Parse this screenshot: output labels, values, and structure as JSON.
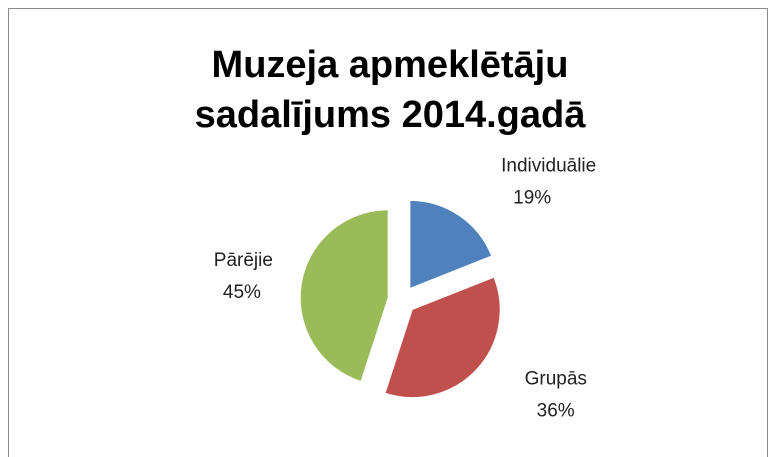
{
  "chart_data": {
    "type": "pie",
    "title": "Muzeja apmeklētāju sadalījums 2014.gadā",
    "categories": [
      "Individuālie",
      "Grupās",
      "Pārējie"
    ],
    "values": [
      19,
      36,
      45
    ],
    "value_labels": [
      "19%",
      "36%",
      "45%"
    ],
    "colors": [
      "#4f81bd",
      "#c0504d",
      "#9bbb59"
    ]
  }
}
